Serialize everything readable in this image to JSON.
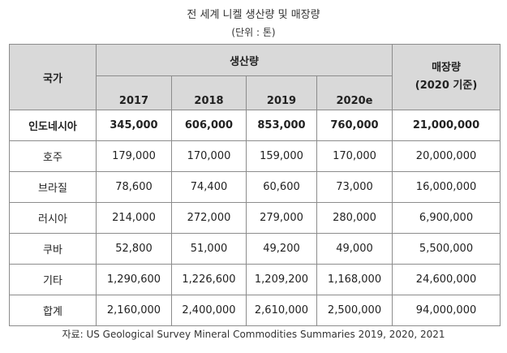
{
  "title": "전 세계 니켈 생산량 및 매장량",
  "unit": "(단위 : 톤)",
  "header": {
    "country": "국가",
    "production": "생산량",
    "years": [
      "2017",
      "2018",
      "2019",
      "2020e"
    ],
    "reserves_line1": "매장량",
    "reserves_line2": "(2020 기준)"
  },
  "rows": [
    {
      "country": "인도네시아",
      "values": [
        "345,000",
        "606,000",
        "853,000",
        "760,000"
      ],
      "reserves": "21,000,000"
    },
    {
      "country": "호주",
      "values": [
        "179,000",
        "170,000",
        "159,000",
        "170,000"
      ],
      "reserves": "20,000,000"
    },
    {
      "country": "브라질",
      "values": [
        "78,600",
        "74,400",
        "60,600",
        "73,000"
      ],
      "reserves": "16,000,000"
    },
    {
      "country": "러시아",
      "values": [
        "214,000",
        "272,000",
        "279,000",
        "280,000"
      ],
      "reserves": "6,900,000"
    },
    {
      "country": "쿠바",
      "values": [
        "52,800",
        "51,000",
        "49,200",
        "49,000"
      ],
      "reserves": "5,500,000"
    },
    {
      "country": "기타",
      "values": [
        "1,290,600",
        "1,226,600",
        "1,209,200",
        "1,168,000"
      ],
      "reserves": "24,600,000"
    },
    {
      "country": "합계",
      "values": [
        "2,160,000",
        "2,400,000",
        "2,610,000",
        "2,500,000"
      ],
      "reserves": "94,000,000"
    }
  ],
  "source": "자료: US Geological Survey Mineral Commodities Summaries 2019, 2020, 2021"
}
